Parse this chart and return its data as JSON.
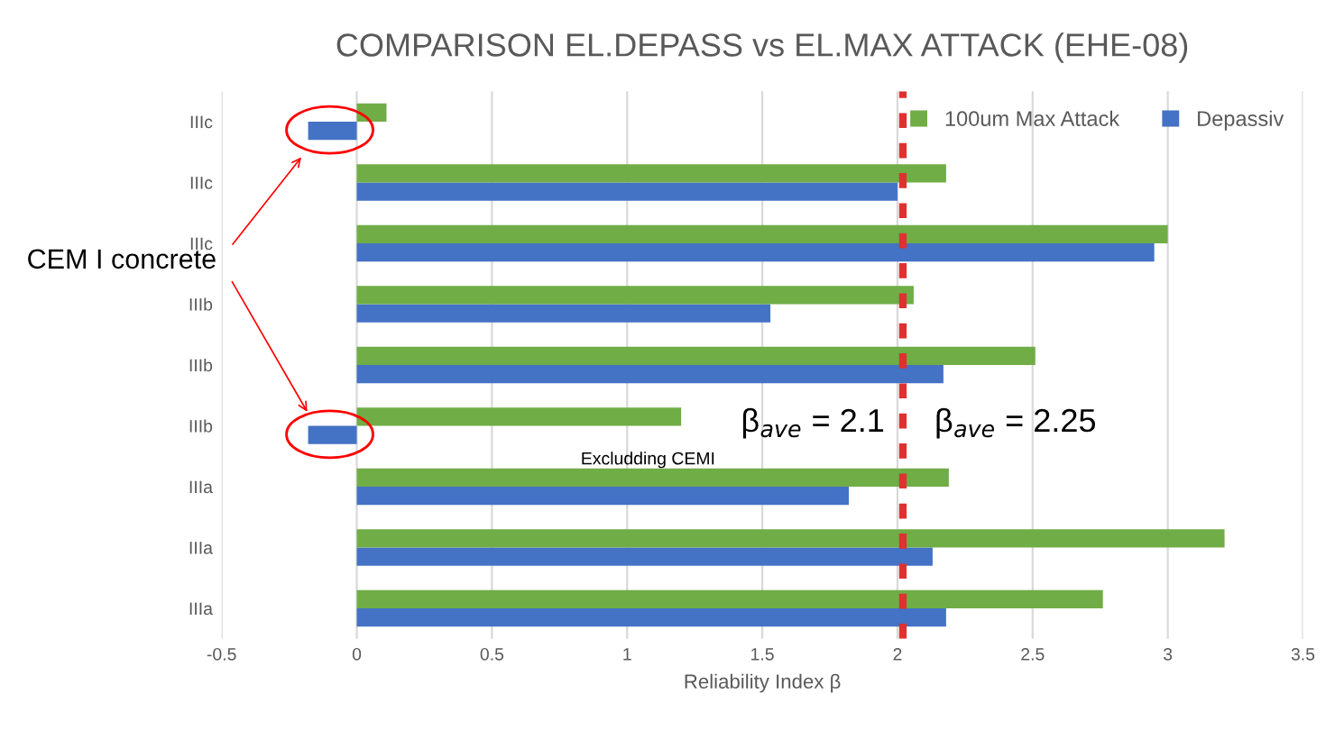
{
  "chart_data": {
    "type": "bar",
    "orientation": "horizontal",
    "title": "COMPARISON EL.DEPASS vs EL.MAX ATTACK (EHE-08)",
    "xlabel": "Reliability Index β",
    "categories": [
      "IIIc",
      "IIIc",
      "IIIc",
      "IIIb",
      "IIIb",
      "IIIb",
      "IIIa",
      "IIIa",
      "IIIa"
    ],
    "series": [
      {
        "name": "Depassiv",
        "color": "#4472c4",
        "values": [
          -0.18,
          2.0,
          2.95,
          1.53,
          2.17,
          -0.18,
          1.82,
          2.13,
          2.18
        ]
      },
      {
        "name": "100um Max Attack",
        "color": "#70ad47",
        "values": [
          0.11,
          2.18,
          3.0,
          2.06,
          2.51,
          1.2,
          2.19,
          3.21,
          2.76
        ]
      }
    ],
    "xlim": [
      -0.5,
      3.5
    ],
    "xticks": [
      -0.5,
      0,
      0.5,
      1,
      1.5,
      2,
      2.5,
      3,
      3.5
    ],
    "grid": "x",
    "legend": "top right",
    "ref_lines": [
      {
        "axis": "x",
        "value": 2.02,
        "color": "#e03030",
        "line_style": "dashed"
      }
    ],
    "annotations": [
      "CEM I concrete",
      "β$_{ave}$ = 2.1",
      "β$_{ave}$ = 2.25",
      "Excludding CEMI"
    ]
  }
}
